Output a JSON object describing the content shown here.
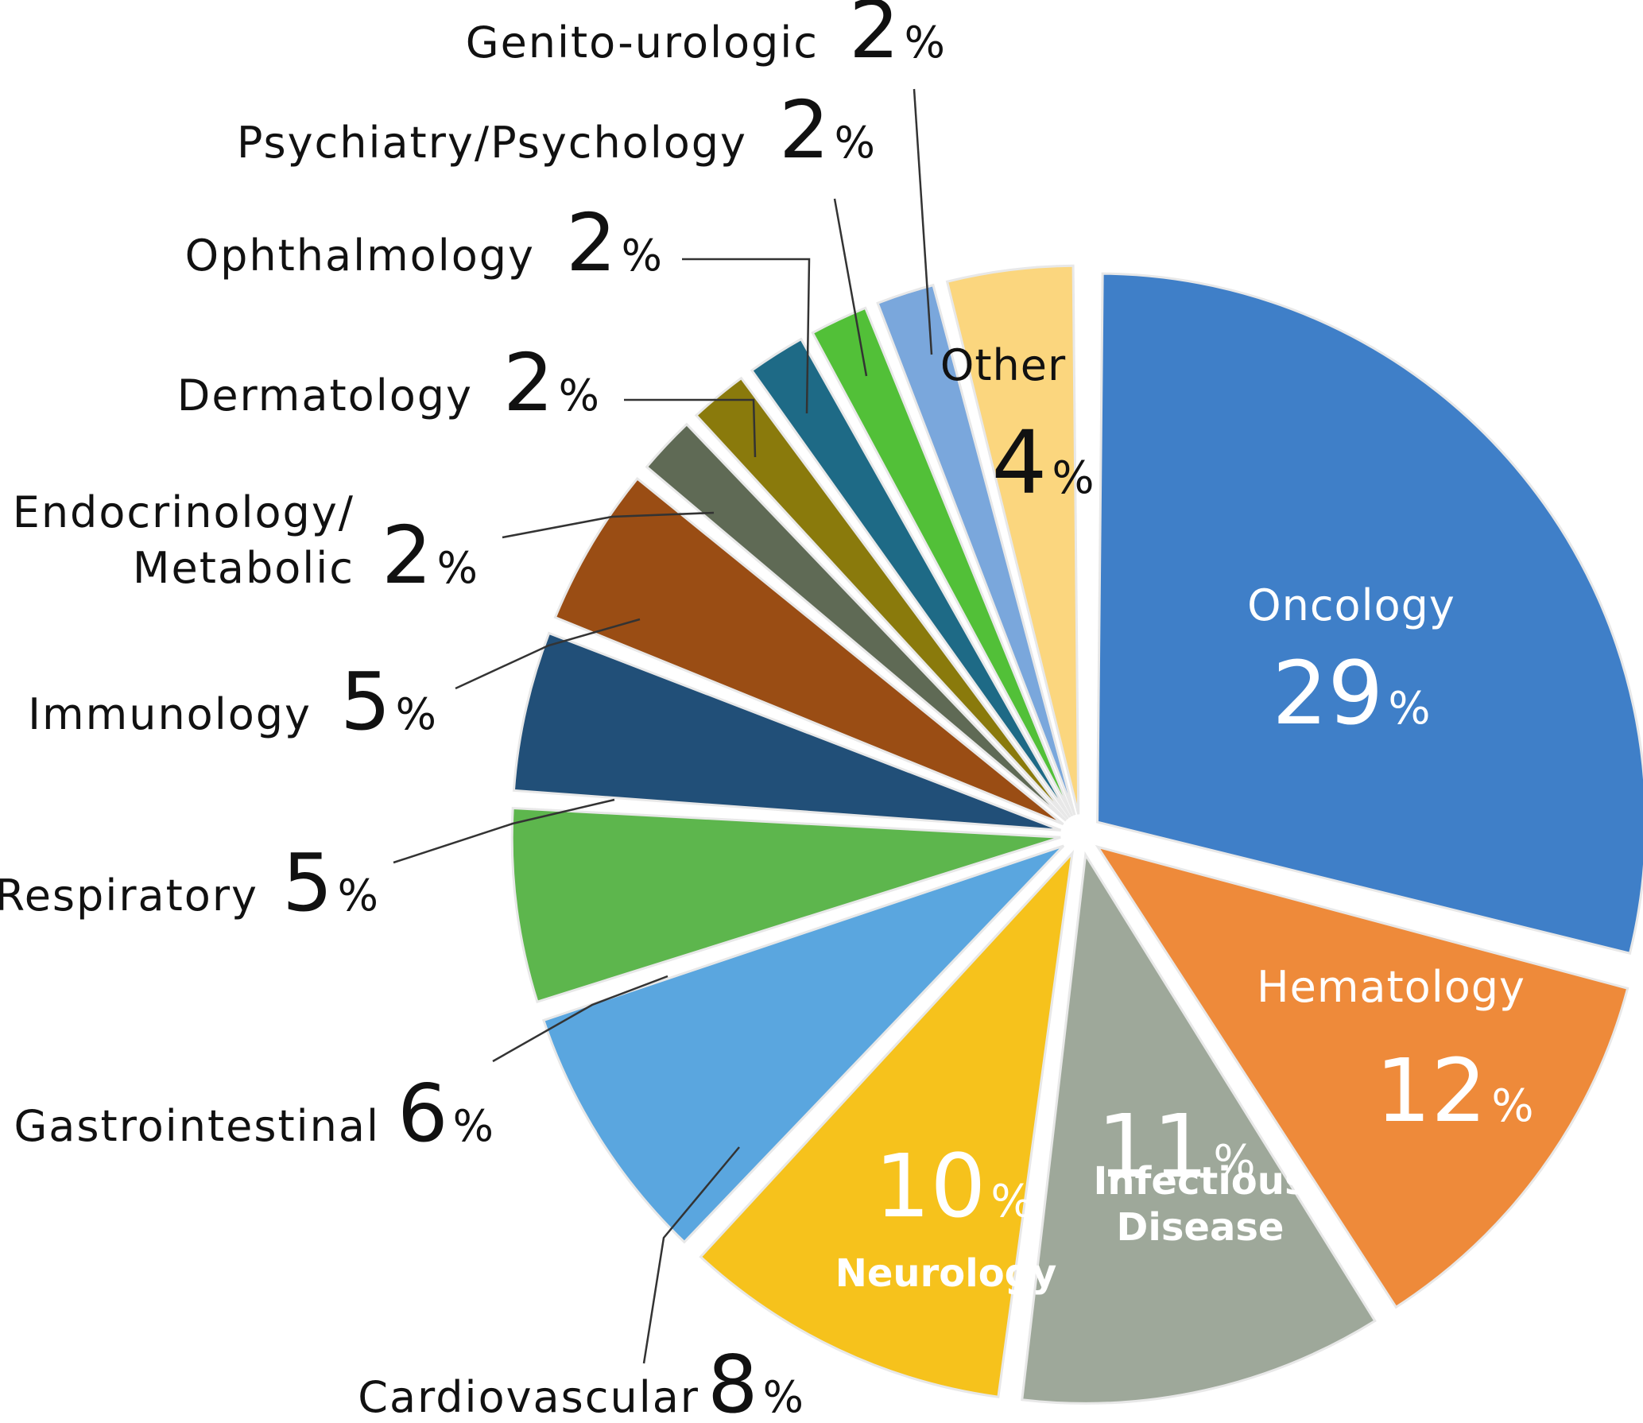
{
  "chart_data": {
    "type": "pie",
    "percent_sign": "%",
    "slices": [
      {
        "name": "Oncology",
        "value": 29,
        "color": "#3f7fc8",
        "label": "inside"
      },
      {
        "name": "Hematology",
        "value": 12,
        "color": "#ee8a3a",
        "label": "inside"
      },
      {
        "name": "Infectious Disease",
        "value": 11,
        "color": "#9ea89a",
        "label": "inside"
      },
      {
        "name": "Neurology",
        "value": 10,
        "color": "#f6c21c",
        "label": "inside"
      },
      {
        "name": "Cardiovascular",
        "value": 8,
        "color": "#5aa6df",
        "label": "outside"
      },
      {
        "name": "Gastrointestinal",
        "value": 6,
        "color": "#5db64d",
        "label": "outside"
      },
      {
        "name": "Respiratory",
        "value": 5,
        "color": "#214f78",
        "label": "outside"
      },
      {
        "name": "Immunology",
        "value": 5,
        "color": "#9a4d14",
        "label": "outside"
      },
      {
        "name": "Endocrinology/ Metabolic",
        "value": 2,
        "color": "#5f6a55",
        "label": "outside"
      },
      {
        "name": "Dermatology",
        "value": 2,
        "color": "#8a7a0c",
        "label": "outside"
      },
      {
        "name": "Ophthalmology",
        "value": 2,
        "color": "#1e6a86",
        "label": "outside"
      },
      {
        "name": "Psychiatry/Psychology",
        "value": 2,
        "color": "#52c038",
        "label": "outside"
      },
      {
        "name": "Genito-urologic",
        "value": 2,
        "color": "#7aa7dc",
        "label": "outside"
      },
      {
        "name": "Other",
        "value": 4,
        "color": "#fbd67e",
        "label": "inside"
      }
    ]
  }
}
